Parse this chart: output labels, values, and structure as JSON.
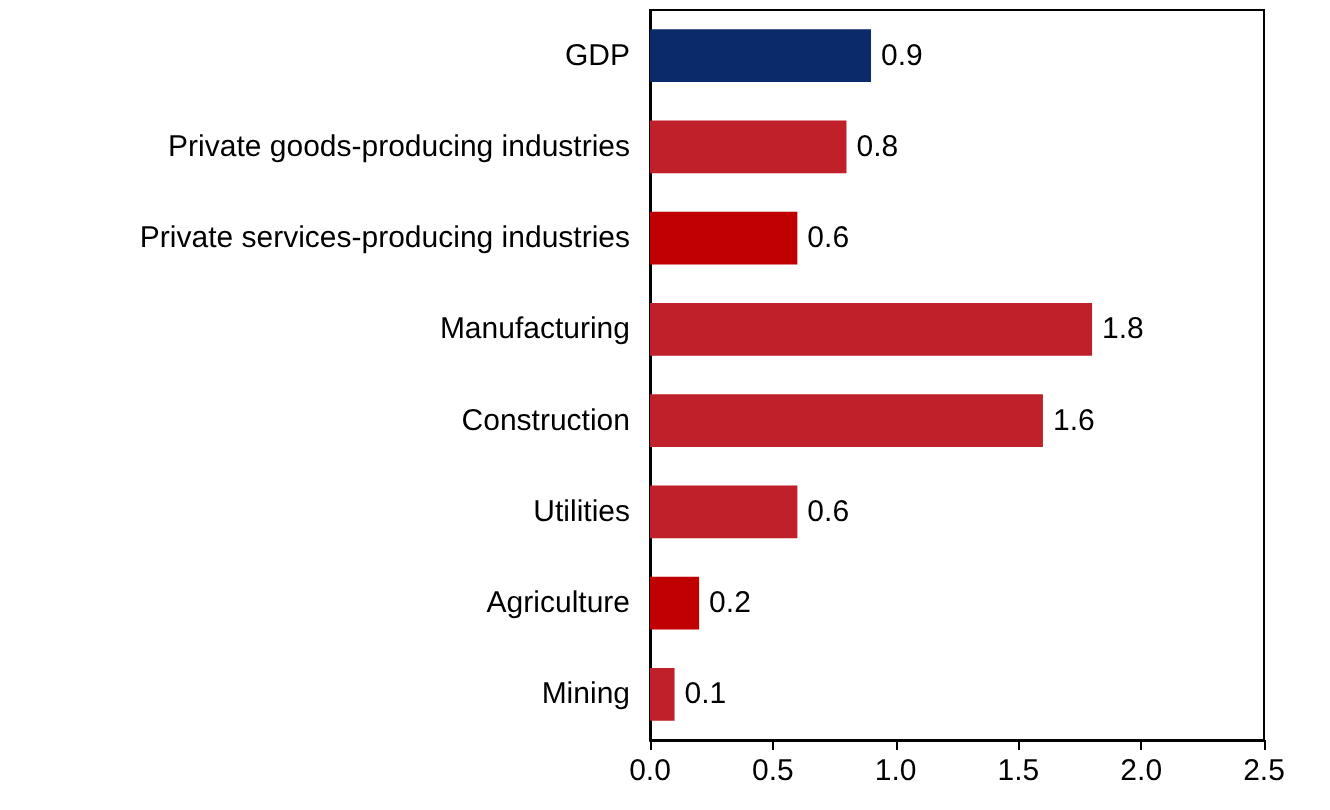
{
  "chart_data": {
    "type": "bar",
    "orientation": "horizontal",
    "categories": [
      "GDP",
      "Private goods-producing industries",
      "Private services-producing industries",
      "Manufacturing",
      "Construction",
      "Utilities",
      "Agriculture",
      "Mining"
    ],
    "values": [
      0.9,
      0.8,
      0.6,
      1.8,
      1.6,
      0.6,
      0.2,
      0.1
    ],
    "colors": [
      "#0a2a6a",
      "#c0202a",
      "#c00000",
      "#c0202a",
      "#c0202a",
      "#c0202a",
      "#c00000",
      "#c0202a"
    ],
    "xlim": [
      0,
      2.5
    ],
    "xticks": [
      {
        "value": 0,
        "label": "0.0"
      },
      0.5,
      {
        "value": 1,
        "label": "1.0"
      },
      1.5,
      {
        "value": 2,
        "label": "2.0"
      },
      2.5
    ],
    "data_labels": true,
    "grid": false
  }
}
